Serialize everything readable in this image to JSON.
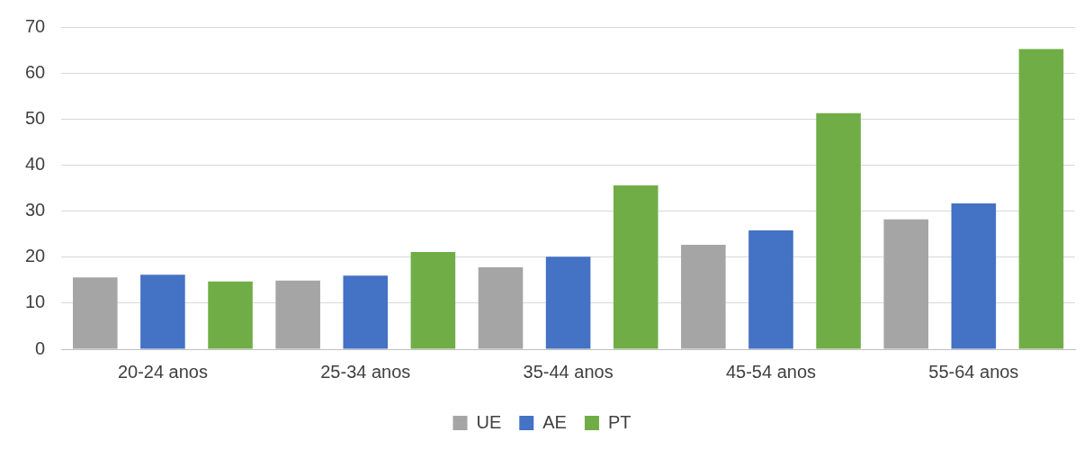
{
  "chart_data": {
    "type": "bar",
    "categories": [
      "20-24 anos",
      "25-34 anos",
      "35-44 anos",
      "45-54 anos",
      "55-64 anos"
    ],
    "series": [
      {
        "name": "UE",
        "color": "#a5a5a5",
        "values": [
          15.6,
          14.9,
          17.8,
          22.7,
          28.2
        ]
      },
      {
        "name": "AE",
        "color": "#4472c4",
        "values": [
          16.2,
          16.0,
          20.1,
          25.8,
          31.7
        ]
      },
      {
        "name": "PT",
        "color": "#70ad47",
        "values": [
          14.7,
          21.1,
          35.6,
          51.3,
          65.2
        ]
      }
    ],
    "ylim": [
      0,
      70
    ],
    "yticks": [
      0,
      10,
      20,
      30,
      40,
      50,
      60,
      70
    ],
    "grid": "y",
    "legend": "bottom"
  }
}
